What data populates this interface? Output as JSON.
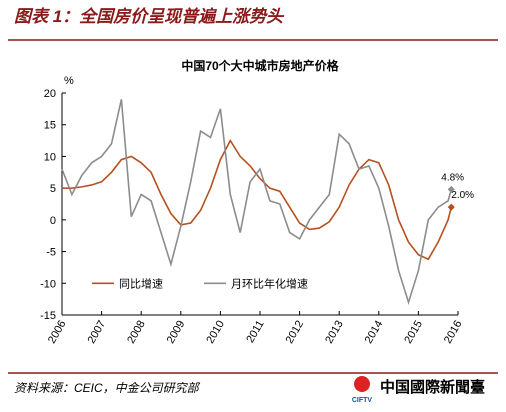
{
  "header": {
    "title": "图表 1：全国房价呈现普遍上涨势头"
  },
  "chart_data": {
    "type": "line",
    "title": "中国70个大中城市房地产价格",
    "y_label": "%",
    "x": [
      2006,
      2006.25,
      2006.5,
      2006.75,
      2007,
      2007.25,
      2007.5,
      2007.75,
      2008,
      2008.25,
      2008.5,
      2008.75,
      2009,
      2009.25,
      2009.5,
      2009.75,
      2010,
      2010.25,
      2010.5,
      2010.75,
      2011,
      2011.25,
      2011.5,
      2011.75,
      2012,
      2012.25,
      2012.5,
      2012.75,
      2013,
      2013.25,
      2013.5,
      2013.75,
      2014,
      2014.25,
      2014.5,
      2014.75,
      2015,
      2015.25,
      2015.5,
      2015.75,
      2015.83
    ],
    "series": [
      {
        "name": "同比增速",
        "color": "#b5501f",
        "values": [
          5,
          5,
          5.2,
          5.5,
          6,
          7.5,
          9.5,
          10,
          9,
          7.5,
          4,
          1,
          -0.8,
          -0.5,
          1.5,
          5,
          9.5,
          12.5,
          10,
          8.5,
          6.5,
          5,
          4.5,
          2,
          -0.5,
          -1.5,
          -1.3,
          -0.3,
          2,
          5.5,
          8,
          9.5,
          9,
          5.5,
          0,
          -3.5,
          -5.5,
          -6.2,
          -3.5,
          0,
          2.0
        ],
        "value_labels": [
          null,
          null,
          null,
          null,
          null,
          null,
          null,
          null,
          null,
          null,
          null,
          null,
          null,
          null,
          null,
          null,
          null,
          null,
          null,
          null,
          null,
          null,
          null,
          null,
          null,
          null,
          null,
          null,
          null,
          null,
          null,
          null,
          null,
          null,
          null,
          null,
          null,
          null,
          null,
          null,
          "2.0%"
        ]
      },
      {
        "name": "月环比年化增速",
        "color": "#8c8c8c",
        "values": [
          8,
          4,
          7,
          9,
          10,
          12,
          19,
          0.5,
          4,
          3,
          -2,
          -7,
          -1,
          6,
          14,
          13,
          17.5,
          4,
          -2,
          6,
          8,
          3,
          2.5,
          -2,
          -3,
          0,
          2,
          4,
          13.5,
          12,
          8,
          8.5,
          5,
          -1,
          -8,
          -13,
          -8,
          0,
          2,
          3,
          4.8
        ],
        "value_labels": [
          null,
          null,
          null,
          null,
          null,
          null,
          null,
          null,
          null,
          null,
          null,
          null,
          null,
          null,
          null,
          null,
          null,
          null,
          null,
          null,
          null,
          null,
          null,
          null,
          null,
          null,
          null,
          null,
          null,
          null,
          null,
          null,
          null,
          null,
          null,
          null,
          null,
          null,
          null,
          null,
          "4.8%"
        ]
      }
    ],
    "xlim": [
      2006,
      2016
    ],
    "xticks": [
      2006,
      2007,
      2008,
      2009,
      2010,
      2011,
      2012,
      2013,
      2014,
      2015,
      2016
    ],
    "ylim": [
      -15,
      20
    ],
    "yticks": [
      -15,
      -10,
      -5,
      0,
      5,
      10,
      15,
      20
    ],
    "grid": false,
    "legend": "lower left"
  },
  "footer": {
    "source": "资料来源：CEIC，中金公司研究部",
    "logo_mark": "CIFTV",
    "logo_name": "中国國際新聞臺"
  }
}
